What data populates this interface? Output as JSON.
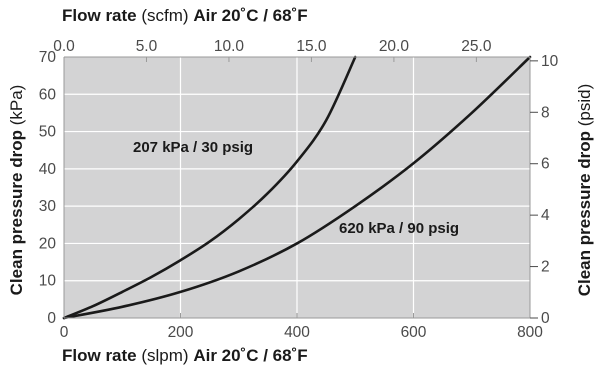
{
  "chart_data": {
    "type": "line",
    "x_bottom": {
      "title_bold": "Flow rate",
      "title_unit": "(slpm)",
      "title_suffix": "Air 20˚C / 68˚F",
      "range": [
        0,
        800
      ],
      "ticks": [
        "0",
        "200",
        "400",
        "600",
        "800"
      ]
    },
    "x_top": {
      "title_bold": "Flow rate",
      "title_unit": "(scfm)",
      "title_suffix": "Air 20˚C / 68˚F",
      "range": [
        0.0,
        28.25
      ],
      "ticks": [
        "0.0",
        "5.0",
        "10.0",
        "15.0",
        "20.0",
        "25.0"
      ]
    },
    "y_left": {
      "title_bold": "Clean pressure drop",
      "title_unit": "(kPa)",
      "range": [
        0,
        70
      ],
      "ticks": [
        "0",
        "10",
        "20",
        "30",
        "40",
        "50",
        "60",
        "70"
      ]
    },
    "y_right": {
      "title_bold": "Clean pressure drop",
      "title_unit": "(psid)",
      "range": [
        0,
        10.15
      ],
      "ticks": [
        "0",
        "2",
        "4",
        "6",
        "8",
        "10"
      ]
    },
    "grid": true,
    "plot_background": "#d3d3d4",
    "grid_color": "#ffffff",
    "line_color": "#1a1a1a",
    "series": [
      {
        "name": "207 kPa / 30 psig",
        "x": [
          0,
          50,
          100,
          150,
          200,
          250,
          300,
          350,
          400,
          450,
          500
        ],
        "y": [
          0,
          3.2,
          7,
          11,
          15.5,
          20.5,
          26.5,
          33.5,
          42,
          53,
          70
        ]
      },
      {
        "name": "620 kPa / 90 psig",
        "x": [
          0,
          100,
          200,
          300,
          400,
          500,
          600,
          700,
          800
        ],
        "y": [
          0,
          3,
          7,
          12.5,
          20,
          30,
          41.5,
          55,
          70
        ]
      }
    ]
  }
}
